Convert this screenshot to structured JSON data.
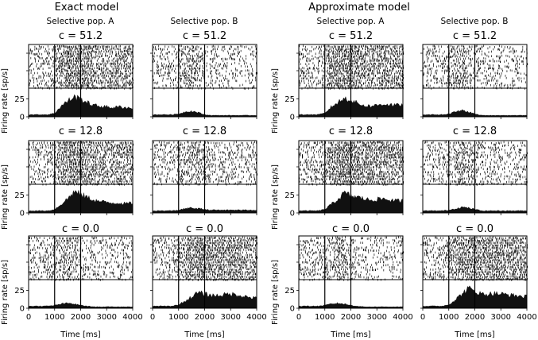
{
  "models": [
    "Exact model",
    "Approximate model"
  ],
  "populations": [
    "Selective pop. A",
    "Selective pop. B"
  ],
  "conditions": [
    "c = 51.2",
    "c = 12.8",
    "c = 0.0"
  ],
  "ylabel": "Firing rate [sp/s]",
  "xlabel": "Time [ms]",
  "chart_data": {
    "type": "area",
    "description_layout": "3 coherence rows x 4 columns (2 models x 2 populations); each panel = spike raster above population firing-rate histogram",
    "x_ticks": [
      0,
      1000,
      2000,
      3000,
      4000
    ],
    "x_tick_labels": [
      "0",
      "1000",
      "2000",
      "3000",
      "4000"
    ],
    "y_ticks": [
      0,
      25
    ],
    "y_tick_labels": [
      "0",
      "25"
    ],
    "xlim": [
      0,
      4000
    ],
    "ylim": [
      0,
      40
    ],
    "stimulus_window_ms": [
      1000,
      2000
    ],
    "t_ms": [
      0,
      250,
      500,
      750,
      1000,
      1250,
      1500,
      1750,
      2000,
      2250,
      2500,
      2750,
      3000,
      3250,
      3500,
      3750,
      4000
    ],
    "panels": [
      {
        "model": "Exact model",
        "population": "Selective pop. A",
        "condition": "c = 51.2",
        "rate": [
          3,
          3,
          3,
          3,
          5,
          15,
          22,
          28,
          25,
          20,
          16,
          15,
          14,
          13,
          14,
          13,
          12
        ],
        "raster_density": [
          0.35,
          0.35,
          0.35,
          0.35,
          0.5,
          0.8,
          0.9,
          0.95,
          0.9,
          0.8,
          0.7,
          0.7,
          0.68,
          0.65,
          0.65,
          0.65,
          0.63
        ]
      },
      {
        "model": "Exact model",
        "population": "Selective pop. B",
        "condition": "c = 51.2",
        "rate": [
          3,
          3,
          3,
          3,
          4,
          7,
          8,
          6,
          3,
          2,
          2,
          2,
          2,
          2,
          2,
          2,
          2
        ],
        "raster_density": [
          0.35,
          0.35,
          0.35,
          0.35,
          0.45,
          0.6,
          0.62,
          0.5,
          0.3,
          0.28,
          0.28,
          0.28,
          0.28,
          0.28,
          0.28,
          0.28,
          0.28
        ]
      },
      {
        "model": "Approximate model",
        "population": "Selective pop. A",
        "condition": "c = 51.2",
        "rate": [
          3,
          3,
          3,
          3,
          5,
          14,
          20,
          26,
          24,
          19,
          16,
          15,
          16,
          18,
          17,
          16,
          17
        ],
        "raster_density": [
          0.35,
          0.35,
          0.35,
          0.35,
          0.5,
          0.8,
          0.9,
          0.95,
          0.9,
          0.8,
          0.72,
          0.7,
          0.72,
          0.74,
          0.73,
          0.72,
          0.72
        ]
      },
      {
        "model": "Approximate model",
        "population": "Selective pop. B",
        "condition": "c = 51.2",
        "rate": [
          3,
          3,
          3,
          3,
          4,
          7,
          9,
          7,
          4,
          2,
          2,
          2,
          2,
          2,
          2,
          2,
          2
        ],
        "raster_density": [
          0.35,
          0.35,
          0.35,
          0.35,
          0.45,
          0.6,
          0.62,
          0.5,
          0.3,
          0.28,
          0.28,
          0.28,
          0.28,
          0.28,
          0.28,
          0.28,
          0.28
        ]
      },
      {
        "model": "Exact model",
        "population": "Selective pop. A",
        "condition": "c = 12.8",
        "rate": [
          3,
          3,
          3,
          3,
          5,
          12,
          20,
          30,
          26,
          22,
          18,
          16,
          15,
          14,
          14,
          13,
          14
        ],
        "raster_density": [
          0.35,
          0.35,
          0.35,
          0.35,
          0.5,
          0.75,
          0.9,
          0.95,
          0.9,
          0.82,
          0.74,
          0.7,
          0.68,
          0.66,
          0.66,
          0.65,
          0.66
        ]
      },
      {
        "model": "Exact model",
        "population": "Selective pop. B",
        "condition": "c = 12.8",
        "rate": [
          3,
          3,
          3,
          3,
          4,
          6,
          7,
          6,
          5,
          4,
          4,
          4,
          4,
          4,
          4,
          4,
          4
        ],
        "raster_density": [
          0.35,
          0.35,
          0.35,
          0.35,
          0.45,
          0.55,
          0.6,
          0.55,
          0.4,
          0.35,
          0.35,
          0.35,
          0.35,
          0.35,
          0.35,
          0.35,
          0.35
        ]
      },
      {
        "model": "Approximate model",
        "population": "Selective pop. A",
        "condition": "c = 12.8",
        "rate": [
          3,
          3,
          3,
          3,
          5,
          12,
          19,
          28,
          24,
          22,
          20,
          18,
          19,
          20,
          18,
          17,
          17
        ],
        "raster_density": [
          0.35,
          0.35,
          0.35,
          0.35,
          0.5,
          0.75,
          0.9,
          0.95,
          0.9,
          0.82,
          0.78,
          0.74,
          0.75,
          0.76,
          0.74,
          0.72,
          0.72
        ]
      },
      {
        "model": "Approximate model",
        "population": "Selective pop. B",
        "condition": "c = 12.8",
        "rate": [
          3,
          3,
          3,
          3,
          4,
          6,
          8,
          7,
          5,
          3,
          3,
          3,
          3,
          3,
          3,
          3,
          3
        ],
        "raster_density": [
          0.35,
          0.35,
          0.35,
          0.35,
          0.45,
          0.55,
          0.6,
          0.55,
          0.4,
          0.32,
          0.32,
          0.32,
          0.32,
          0.32,
          0.32,
          0.32,
          0.32
        ]
      },
      {
        "model": "Exact model",
        "population": "Selective pop. A",
        "condition": "c = 0.0",
        "rate": [
          3,
          3,
          3,
          3,
          4,
          6,
          7,
          6,
          4,
          3,
          2,
          2,
          2,
          2,
          2,
          2,
          2
        ],
        "raster_density": [
          0.35,
          0.35,
          0.35,
          0.35,
          0.45,
          0.55,
          0.6,
          0.55,
          0.35,
          0.28,
          0.28,
          0.28,
          0.28,
          0.28,
          0.28,
          0.28,
          0.28
        ]
      },
      {
        "model": "Exact model",
        "population": "Selective pop. B",
        "condition": "c = 0.0",
        "rate": [
          3,
          3,
          3,
          3,
          5,
          10,
          16,
          22,
          20,
          18,
          18,
          19,
          20,
          19,
          17,
          15,
          14
        ],
        "raster_density": [
          0.35,
          0.35,
          0.35,
          0.35,
          0.5,
          0.7,
          0.85,
          0.92,
          0.88,
          0.82,
          0.8,
          0.8,
          0.82,
          0.8,
          0.76,
          0.72,
          0.7
        ]
      },
      {
        "model": "Approximate model",
        "population": "Selective pop. A",
        "condition": "c = 0.0",
        "rate": [
          3,
          3,
          3,
          3,
          4,
          6,
          7,
          6,
          4,
          3,
          2,
          2,
          2,
          2,
          2,
          2,
          2
        ],
        "raster_density": [
          0.35,
          0.35,
          0.35,
          0.35,
          0.45,
          0.55,
          0.6,
          0.55,
          0.35,
          0.28,
          0.28,
          0.28,
          0.28,
          0.28,
          0.28,
          0.28,
          0.28
        ]
      },
      {
        "model": "Approximate model",
        "population": "Selective pop. B",
        "condition": "c = 0.0",
        "rate": [
          3,
          3,
          3,
          3,
          5,
          12,
          20,
          28,
          24,
          20,
          20,
          21,
          20,
          19,
          18,
          17,
          16
        ],
        "raster_density": [
          0.35,
          0.35,
          0.35,
          0.35,
          0.5,
          0.72,
          0.88,
          0.95,
          0.9,
          0.84,
          0.82,
          0.83,
          0.82,
          0.8,
          0.78,
          0.75,
          0.74
        ]
      }
    ]
  }
}
